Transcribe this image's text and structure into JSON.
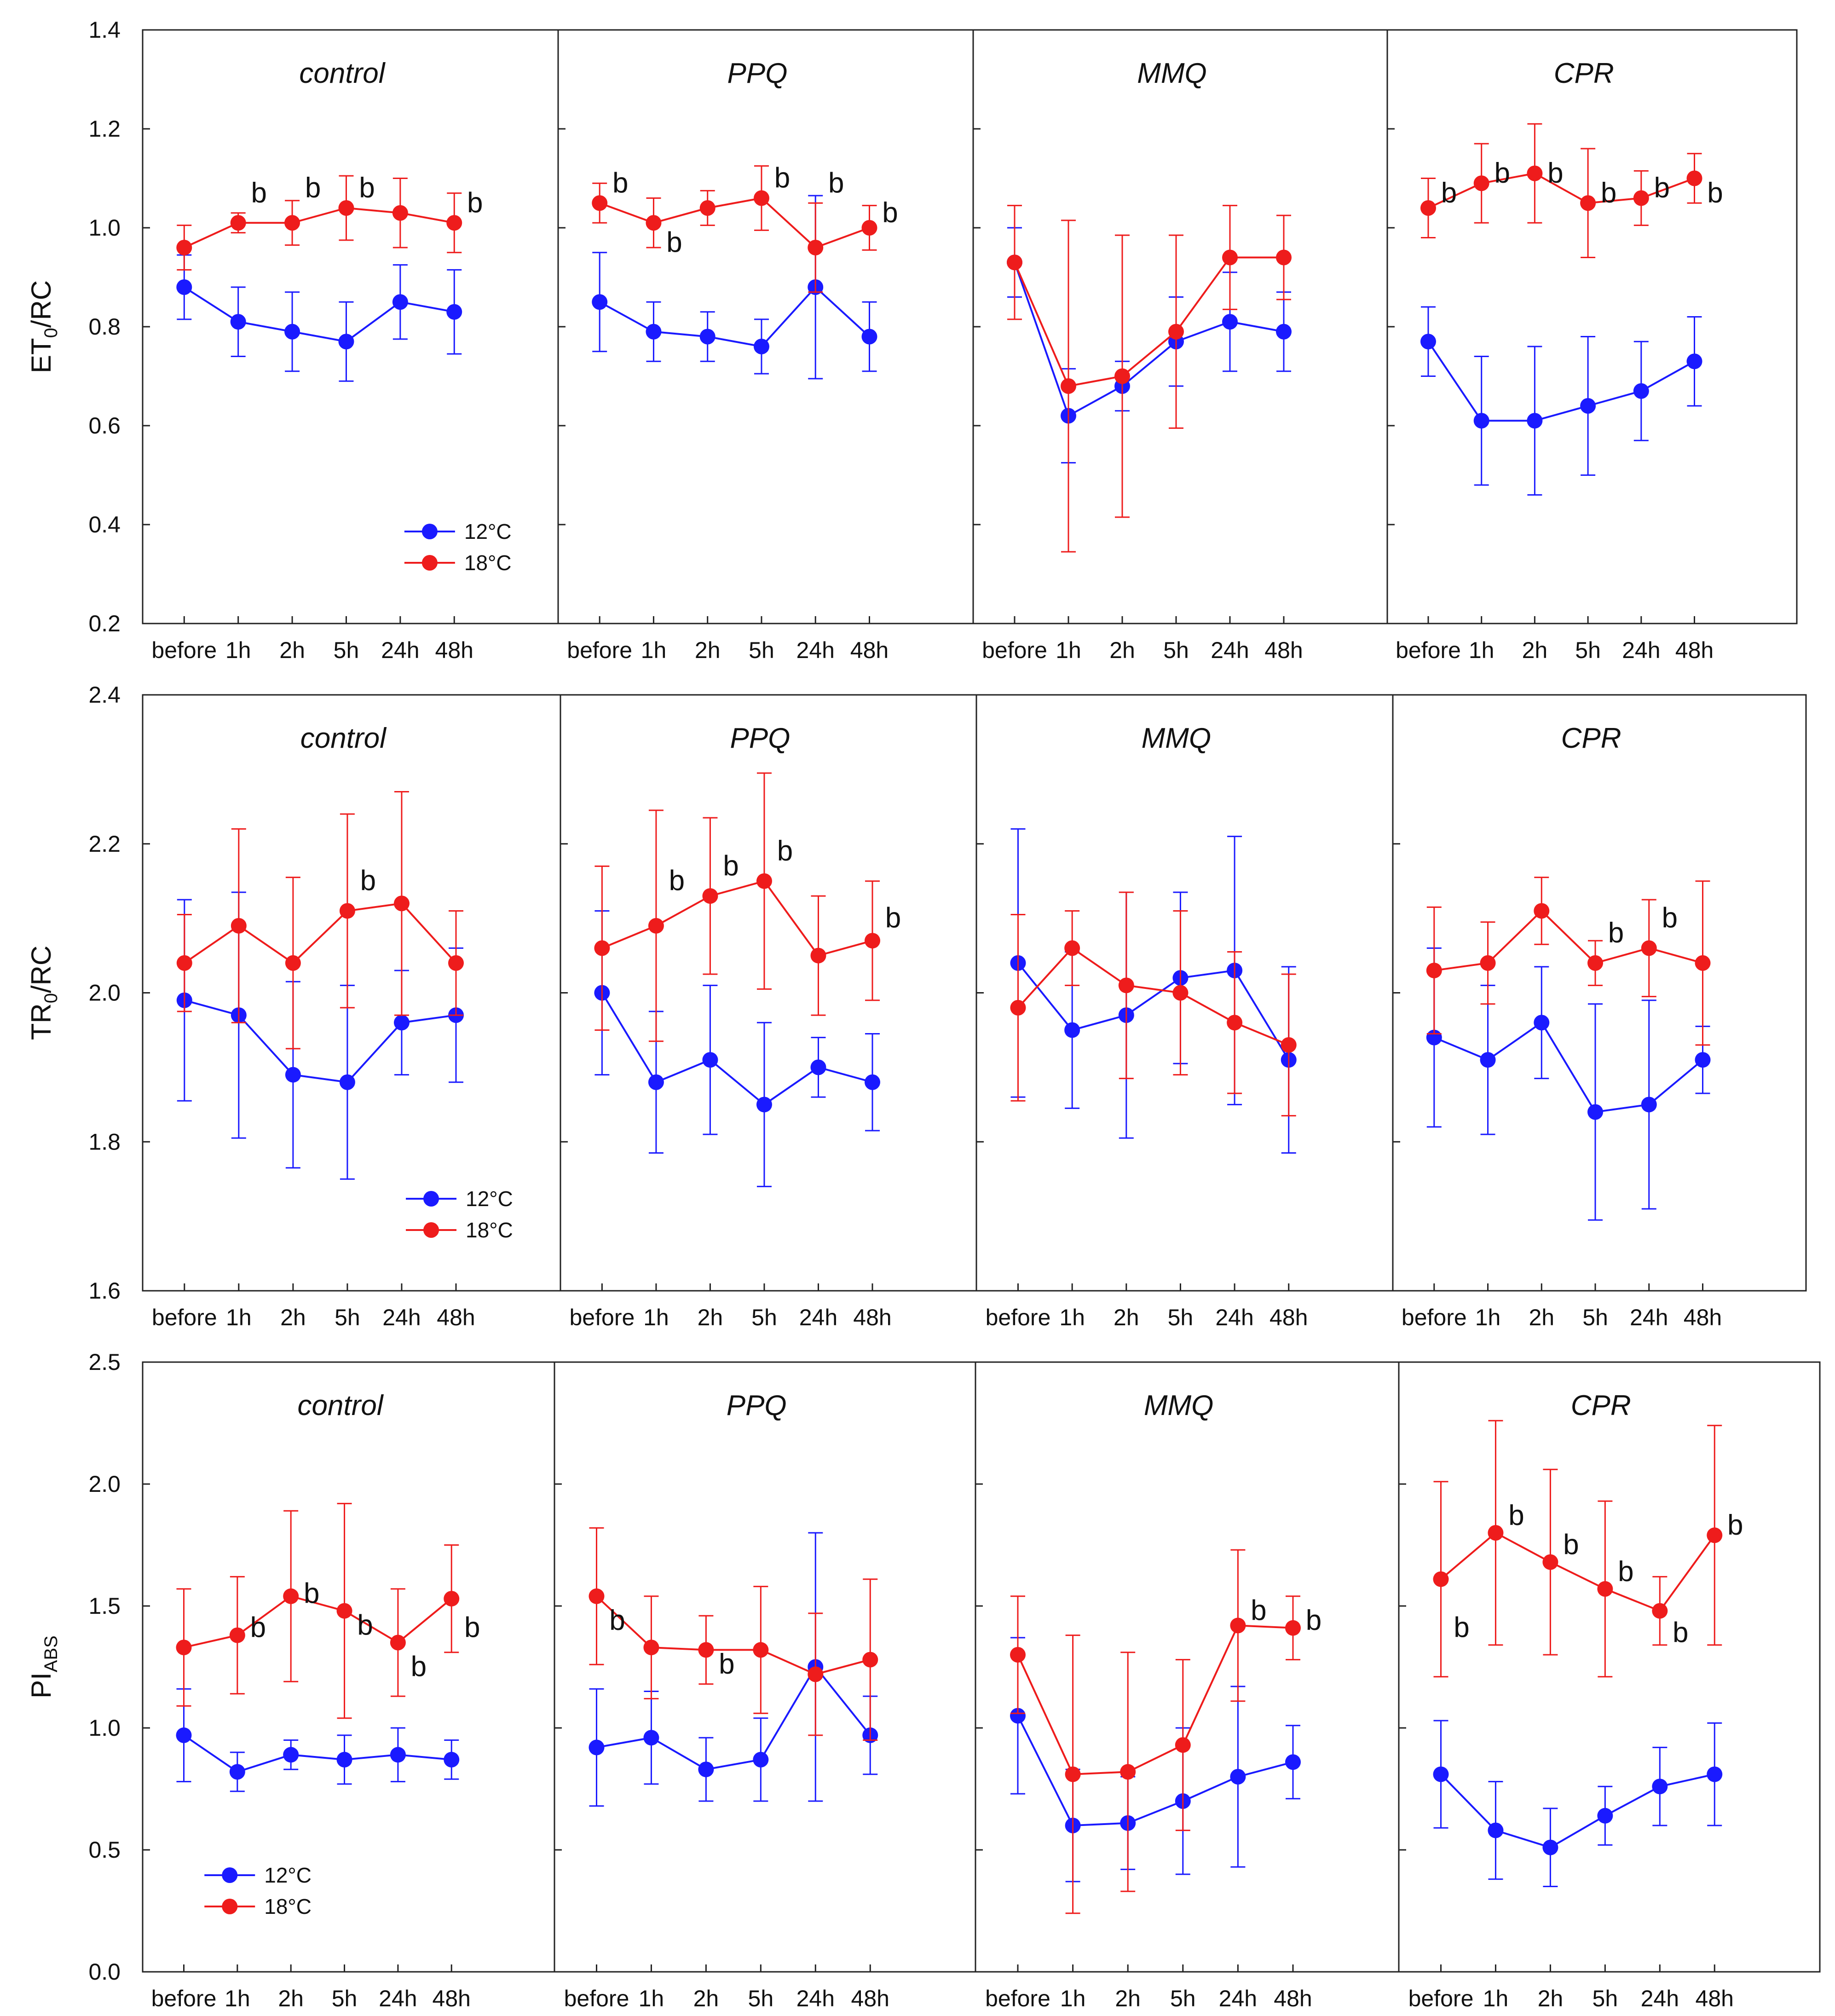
{
  "colors": {
    "s12": "#1a1aff",
    "s18": "#ee1c1c",
    "axis": "#222222"
  },
  "legend": {
    "s12": "12°C",
    "s18": "18°C"
  },
  "sig_label": "b",
  "chart_data": [
    {
      "type": "line",
      "ylabel_main": "ET",
      "ylabel_sub": "0",
      "ylabel_rest": "/RC",
      "ylim": [
        0.2,
        1.4
      ],
      "yticks": [
        "0.2",
        "0.4",
        "0.6",
        "0.8",
        "1.0",
        "1.2",
        "1.4"
      ],
      "categories": [
        "before",
        "1h",
        "2h",
        "5h",
        "24h",
        "48h"
      ],
      "legend_in_panel": 0,
      "panels": [
        {
          "title": "control",
          "series": [
            {
              "name": "12°C",
              "values": [
                0.88,
                0.81,
                0.79,
                0.77,
                0.85,
                0.83
              ],
              "err": [
                0.065,
                0.07,
                0.08,
                0.08,
                0.075,
                0.085
              ]
            },
            {
              "name": "18°C",
              "values": [
                0.96,
                1.01,
                1.01,
                1.04,
                1.03,
                1.01
              ],
              "err": [
                0.045,
                0.02,
                0.045,
                0.065,
                0.07,
                0.06
              ]
            }
          ],
          "sig": [
            {
              "index": 1,
              "value": 1.07,
              "text": "b"
            },
            {
              "index": 2,
              "value": 1.08,
              "text": "b"
            },
            {
              "index": 3,
              "value": 1.08,
              "text": "b"
            },
            {
              "index": 5,
              "value": 1.05,
              "text": "b"
            }
          ]
        },
        {
          "title": "PPQ",
          "series": [
            {
              "name": "12°C",
              "values": [
                0.85,
                0.79,
                0.78,
                0.76,
                0.88,
                0.78
              ],
              "err": [
                0.1,
                0.06,
                0.05,
                0.055,
                0.185,
                0.07
              ]
            },
            {
              "name": "18°C",
              "values": [
                1.05,
                1.01,
                1.04,
                1.06,
                0.96,
                1.0
              ],
              "err": [
                0.04,
                0.05,
                0.035,
                0.065,
                0.09,
                0.045
              ]
            }
          ],
          "sig": [
            {
              "index": 0,
              "value": 1.09,
              "text": "b"
            },
            {
              "index": 1,
              "value": 0.97,
              "text": "b"
            },
            {
              "index": 3,
              "value": 1.1,
              "text": "b"
            },
            {
              "index": 4,
              "value": 1.09,
              "text": "b"
            },
            {
              "index": 5,
              "value": 1.03,
              "text": "b"
            }
          ]
        },
        {
          "title": "MMQ",
          "series": [
            {
              "name": "12°C",
              "values": [
                0.93,
                0.62,
                0.68,
                0.77,
                0.81,
                0.79
              ],
              "err": [
                0.07,
                0.095,
                0.05,
                0.09,
                0.1,
                0.08
              ]
            },
            {
              "name": "18°C",
              "values": [
                0.93,
                0.68,
                0.7,
                0.79,
                0.94,
                0.94
              ],
              "err": [
                0.115,
                0.335,
                0.285,
                0.195,
                0.105,
                0.085
              ]
            }
          ],
          "sig": []
        },
        {
          "title": "CPR",
          "series": [
            {
              "name": "12°C",
              "values": [
                0.77,
                0.61,
                0.61,
                0.64,
                0.67,
                0.73
              ],
              "err": [
                0.07,
                0.13,
                0.15,
                0.14,
                0.1,
                0.09
              ]
            },
            {
              "name": "18°C",
              "values": [
                1.04,
                1.09,
                1.11,
                1.05,
                1.06,
                1.1
              ],
              "err": [
                0.06,
                0.08,
                0.1,
                0.11,
                0.055,
                0.05
              ]
            }
          ],
          "sig": [
            {
              "index": 0,
              "value": 1.07,
              "text": "b"
            },
            {
              "index": 1,
              "value": 1.11,
              "text": "b"
            },
            {
              "index": 2,
              "value": 1.11,
              "text": "b"
            },
            {
              "index": 3,
              "value": 1.07,
              "text": "b"
            },
            {
              "index": 4,
              "value": 1.08,
              "text": "b"
            },
            {
              "index": 5,
              "value": 1.07,
              "text": "b"
            }
          ]
        }
      ]
    },
    {
      "type": "line",
      "ylabel_main": "TR",
      "ylabel_sub": "0",
      "ylabel_rest": "/RC",
      "ylim": [
        1.6,
        2.4
      ],
      "yticks": [
        "1.6",
        "1.8",
        "2.0",
        "2.2",
        "2.4"
      ],
      "categories": [
        "before",
        "1h",
        "2h",
        "5h",
        "24h",
        "48h"
      ],
      "legend_in_panel": 0,
      "panels": [
        {
          "title": "control",
          "series": [
            {
              "name": "12°C",
              "values": [
                1.99,
                1.97,
                1.89,
                1.88,
                1.96,
                1.97
              ],
              "err": [
                0.135,
                0.165,
                0.125,
                0.13,
                0.07,
                0.09
              ]
            },
            {
              "name": "18°C",
              "values": [
                2.04,
                2.09,
                2.04,
                2.11,
                2.12,
                2.04
              ],
              "err": [
                0.065,
                0.13,
                0.115,
                0.13,
                0.15,
                0.07
              ]
            }
          ],
          "sig": [
            {
              "index": 3,
              "value": 2.15,
              "text": "b"
            }
          ]
        },
        {
          "title": "PPQ",
          "series": [
            {
              "name": "12°C",
              "values": [
                2.0,
                1.88,
                1.91,
                1.85,
                1.9,
                1.88
              ],
              "err": [
                0.11,
                0.095,
                0.1,
                0.11,
                0.04,
                0.065
              ]
            },
            {
              "name": "18°C",
              "values": [
                2.06,
                2.09,
                2.13,
                2.15,
                2.05,
                2.07
              ],
              "err": [
                0.11,
                0.155,
                0.105,
                0.145,
                0.08,
                0.08
              ]
            }
          ],
          "sig": [
            {
              "index": 1,
              "value": 2.15,
              "text": "b"
            },
            {
              "index": 2,
              "value": 2.17,
              "text": "b"
            },
            {
              "index": 3,
              "value": 2.19,
              "text": "b"
            },
            {
              "index": 5,
              "value": 2.1,
              "text": "b"
            }
          ]
        },
        {
          "title": "MMQ",
          "series": [
            {
              "name": "12°C",
              "values": [
                2.04,
                1.95,
                1.97,
                2.02,
                2.03,
                1.91
              ],
              "err": [
                0.18,
                0.105,
                0.165,
                0.115,
                0.18,
                0.125
              ]
            },
            {
              "name": "18°C",
              "values": [
                1.98,
                2.06,
                2.01,
                2.0,
                1.96,
                1.93
              ],
              "err": [
                0.125,
                0.05,
                0.125,
                0.11,
                0.095,
                0.095
              ]
            }
          ],
          "sig": []
        },
        {
          "title": "CPR",
          "series": [
            {
              "name": "12°C",
              "values": [
                1.94,
                1.91,
                1.96,
                1.84,
                1.85,
                1.91
              ],
              "err": [
                0.12,
                0.1,
                0.075,
                0.145,
                0.14,
                0.045
              ]
            },
            {
              "name": "18°C",
              "values": [
                2.03,
                2.04,
                2.11,
                2.04,
                2.06,
                2.04
              ],
              "err": [
                0.085,
                0.055,
                0.045,
                0.03,
                0.065,
                0.11
              ]
            }
          ],
          "sig": [
            {
              "index": 3,
              "value": 2.08,
              "text": "b"
            },
            {
              "index": 4,
              "value": 2.1,
              "text": "b"
            }
          ]
        }
      ]
    },
    {
      "type": "line",
      "ylabel_main": "PI",
      "ylabel_sub": "ABS",
      "ylabel_rest": "",
      "ylim": [
        0.0,
        2.5
      ],
      "yticks": [
        "0.0",
        "0.5",
        "1.0",
        "1.5",
        "2.0",
        "2.5"
      ],
      "categories": [
        "before",
        "1h",
        "2h",
        "5h",
        "24h",
        "48h"
      ],
      "legend_in_panel": 0,
      "panels": [
        {
          "title": "control",
          "series": [
            {
              "name": "12°C",
              "values": [
                0.97,
                0.82,
                0.89,
                0.87,
                0.89,
                0.87
              ],
              "err": [
                0.19,
                0.08,
                0.06,
                0.1,
                0.11,
                0.08
              ]
            },
            {
              "name": "18°C",
              "values": [
                1.33,
                1.38,
                1.54,
                1.48,
                1.35,
                1.53
              ],
              "err": [
                0.24,
                0.24,
                0.35,
                0.44,
                0.22,
                0.22
              ]
            }
          ],
          "sig": [
            {
              "index": 1,
              "value": 1.41,
              "text": "b"
            },
            {
              "index": 2,
              "value": 1.55,
              "text": "b"
            },
            {
              "index": 3,
              "value": 1.42,
              "text": "b"
            },
            {
              "index": 4,
              "value": 1.25,
              "text": "b"
            },
            {
              "index": 5,
              "value": 1.41,
              "text": "b"
            }
          ]
        },
        {
          "title": "PPQ",
          "series": [
            {
              "name": "12°C",
              "values": [
                0.92,
                0.96,
                0.83,
                0.87,
                1.25,
                0.97
              ],
              "err": [
                0.24,
                0.19,
                0.13,
                0.17,
                0.55,
                0.16
              ]
            },
            {
              "name": "18°C",
              "values": [
                1.54,
                1.33,
                1.32,
                1.32,
                1.22,
                1.28
              ],
              "err": [
                0.28,
                0.21,
                0.14,
                0.26,
                0.25,
                0.33
              ]
            }
          ],
          "sig": [
            {
              "index": 0,
              "value": 1.44,
              "text": "b"
            },
            {
              "index": 2,
              "value": 1.26,
              "text": "b"
            }
          ]
        },
        {
          "title": "MMQ",
          "series": [
            {
              "name": "12°C",
              "values": [
                1.05,
                0.6,
                0.61,
                0.7,
                0.8,
                0.86
              ],
              "err": [
                0.32,
                0.23,
                0.19,
                0.3,
                0.37,
                0.15
              ]
            },
            {
              "name": "18°C",
              "values": [
                1.3,
                0.81,
                0.82,
                0.93,
                1.42,
                1.41
              ],
              "err": [
                0.24,
                0.57,
                0.49,
                0.35,
                0.31,
                0.13
              ]
            }
          ],
          "sig": [
            {
              "index": 4,
              "value": 1.48,
              "text": "b"
            },
            {
              "index": 5,
              "value": 1.44,
              "text": "b"
            }
          ]
        },
        {
          "title": "CPR",
          "series": [
            {
              "name": "12°C",
              "values": [
                0.81,
                0.58,
                0.51,
                0.64,
                0.76,
                0.81
              ],
              "err": [
                0.22,
                0.2,
                0.16,
                0.12,
                0.16,
                0.21
              ]
            },
            {
              "name": "18°C",
              "values": [
                1.61,
                1.8,
                1.68,
                1.57,
                1.48,
                1.79
              ],
              "err": [
                0.4,
                0.46,
                0.38,
                0.36,
                0.14,
                0.45
              ]
            }
          ],
          "sig": [
            {
              "index": 0,
              "value": 1.41,
              "text": "b"
            },
            {
              "index": 1,
              "value": 1.87,
              "text": "b"
            },
            {
              "index": 2,
              "value": 1.75,
              "text": "b"
            },
            {
              "index": 3,
              "value": 1.64,
              "text": "b"
            },
            {
              "index": 4,
              "value": 1.39,
              "text": "b"
            },
            {
              "index": 5,
              "value": 1.83,
              "text": "b"
            }
          ]
        }
      ]
    }
  ]
}
